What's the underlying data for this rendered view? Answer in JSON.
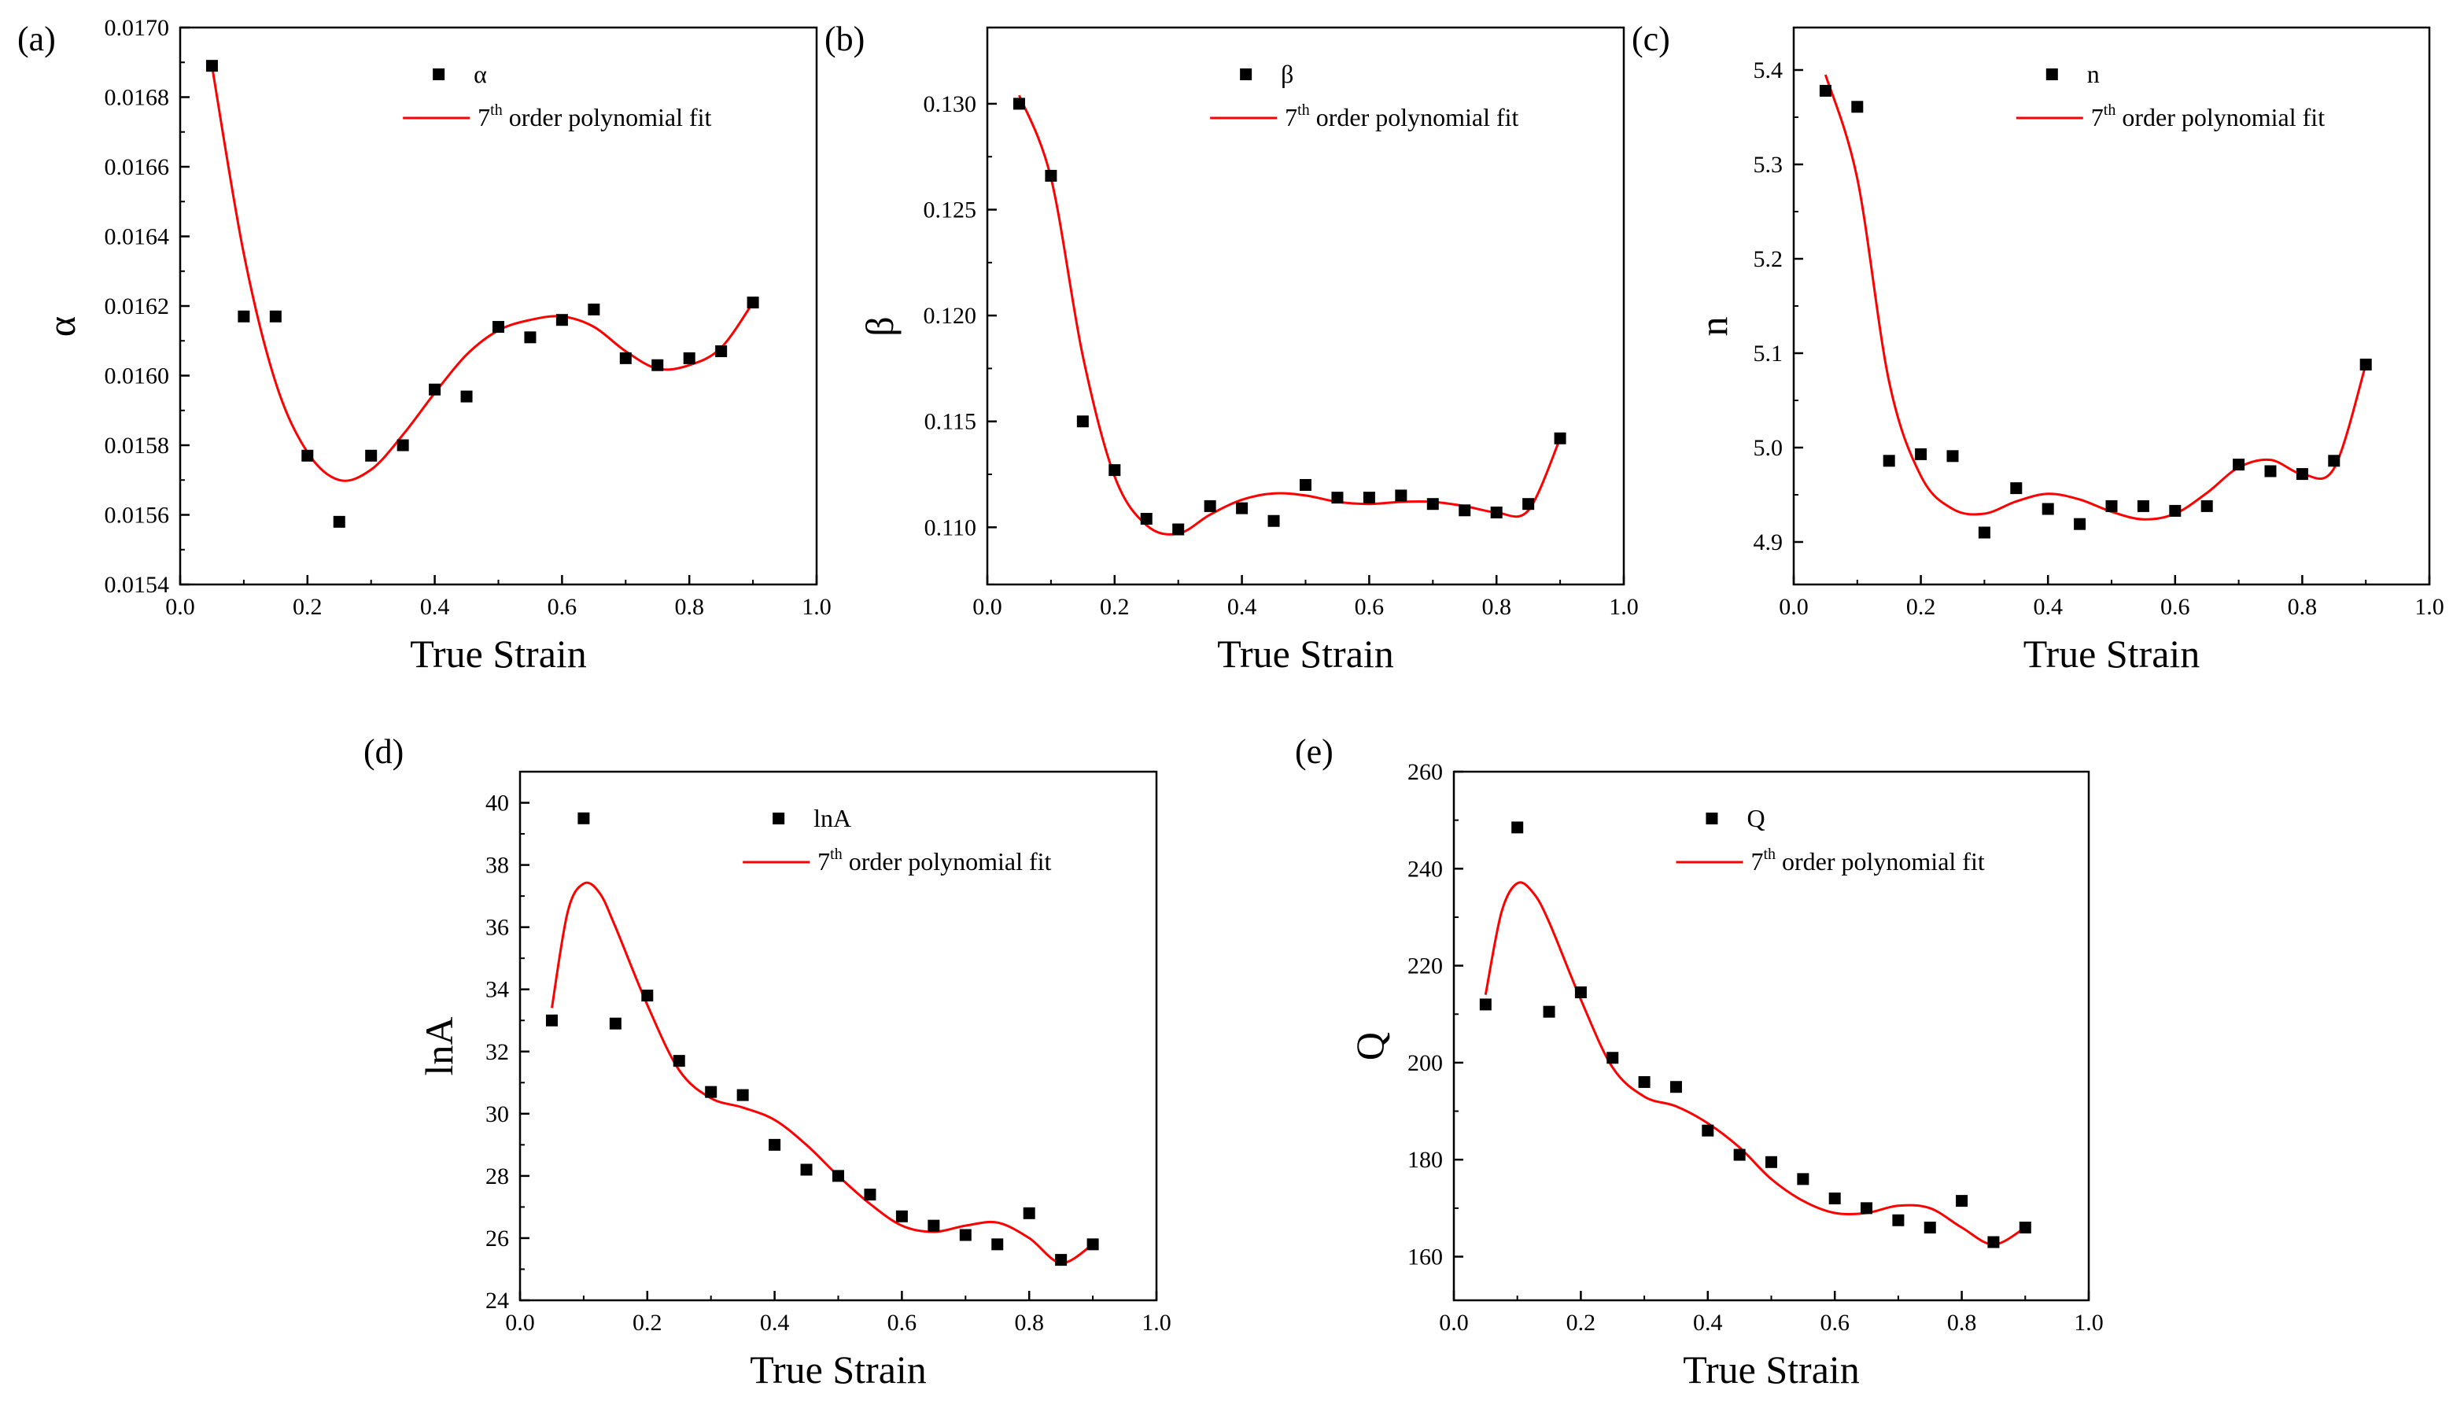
{
  "chart_data": [
    {
      "type": "scatter",
      "panel_label": "(a)",
      "xlabel": "True Strain",
      "ylabel": "α",
      "xlim": [
        0.0,
        1.0
      ],
      "ylim": [
        0.0154,
        0.017
      ],
      "xticks": [
        0.0,
        0.2,
        0.4,
        0.6,
        0.8,
        1.0
      ],
      "xtick_labels": [
        "0.0",
        "0.2",
        "0.4",
        "0.6",
        "0.8",
        "1.0"
      ],
      "yticks": [
        0.0154,
        0.0156,
        0.0158,
        0.016,
        0.0162,
        0.0164,
        0.0166,
        0.0168,
        0.017
      ],
      "ytick_labels": [
        "0.0154",
        "0.0156",
        "0.0158",
        "0.0160",
        "0.0162",
        "0.0164",
        "0.0166",
        "0.0168",
        "0.0170"
      ],
      "legend": {
        "scatter": "α",
        "fit_prefix": "7",
        "fit_sup": "th",
        "fit_suffix": " order polynomial fit"
      },
      "series": [
        {
          "name": "α",
          "kind": "scatter",
          "color": "#000000",
          "x": [
            0.05,
            0.1,
            0.15,
            0.2,
            0.25,
            0.3,
            0.35,
            0.4,
            0.45,
            0.5,
            0.55,
            0.6,
            0.65,
            0.7,
            0.75,
            0.8,
            0.85,
            0.9
          ],
          "y": [
            0.01689,
            0.01617,
            0.01617,
            0.01577,
            0.01558,
            0.01577,
            0.0158,
            0.01596,
            0.01594,
            0.01614,
            0.01611,
            0.01616,
            0.01619,
            0.01605,
            0.01603,
            0.01605,
            0.01607,
            0.01621
          ]
        },
        {
          "name": "7th order polynomial fit",
          "kind": "line",
          "color": "#ff0000",
          "x": [
            0.05,
            0.1,
            0.15,
            0.2,
            0.25,
            0.3,
            0.35,
            0.4,
            0.45,
            0.5,
            0.55,
            0.6,
            0.65,
            0.7,
            0.75,
            0.8,
            0.85,
            0.9
          ],
          "y": [
            0.01689,
            0.01635,
            0.01598,
            0.01578,
            0.0157,
            0.01573,
            0.01583,
            0.01595,
            0.01606,
            0.01613,
            0.01616,
            0.01617,
            0.01614,
            0.01607,
            0.01602,
            0.01603,
            0.01608,
            0.01621
          ]
        }
      ]
    },
    {
      "type": "scatter",
      "panel_label": "(b)",
      "xlabel": "True Strain",
      "ylabel": "β",
      "xlim": [
        0.0,
        1.0
      ],
      "ylim": [
        0.1073,
        0.1336
      ],
      "xticks": [
        0.0,
        0.2,
        0.4,
        0.6,
        0.8,
        1.0
      ],
      "xtick_labels": [
        "0.0",
        "0.2",
        "0.4",
        "0.6",
        "0.8",
        "1.0"
      ],
      "yticks": [
        0.11,
        0.115,
        0.12,
        0.125,
        0.13
      ],
      "ytick_labels": [
        "0.110",
        "0.115",
        "0.120",
        "0.125",
        "0.130"
      ],
      "legend": {
        "scatter": "β",
        "fit_prefix": "7",
        "fit_sup": "th",
        "fit_suffix": " order polynomial fit"
      },
      "series": [
        {
          "name": "β",
          "kind": "scatter",
          "color": "#000000",
          "x": [
            0.05,
            0.1,
            0.15,
            0.2,
            0.25,
            0.3,
            0.35,
            0.4,
            0.45,
            0.5,
            0.55,
            0.6,
            0.65,
            0.7,
            0.75,
            0.8,
            0.85,
            0.9
          ],
          "y": [
            0.13,
            0.1266,
            0.115,
            0.1127,
            0.1104,
            0.1099,
            0.111,
            0.1109,
            0.1103,
            0.112,
            0.1114,
            0.1114,
            0.1115,
            0.1111,
            0.1108,
            0.1107,
            0.1111,
            0.1142
          ]
        },
        {
          "name": "7th order polynomial fit",
          "kind": "line",
          "color": "#ff0000",
          "x": [
            0.05,
            0.1,
            0.15,
            0.2,
            0.25,
            0.3,
            0.35,
            0.4,
            0.45,
            0.5,
            0.55,
            0.6,
            0.65,
            0.7,
            0.75,
            0.8,
            0.85,
            0.9
          ],
          "y": [
            0.1304,
            0.1265,
            0.1181,
            0.1124,
            0.1101,
            0.1097,
            0.1106,
            0.1113,
            0.1116,
            0.1115,
            0.1112,
            0.1111,
            0.1112,
            0.1112,
            0.111,
            0.1107,
            0.1108,
            0.1142
          ]
        }
      ]
    },
    {
      "type": "scatter",
      "panel_label": "(c)",
      "xlabel": "True Strain",
      "ylabel": "n",
      "xlim": [
        0.0,
        1.0
      ],
      "ylim": [
        4.855,
        5.445
      ],
      "xticks": [
        0.0,
        0.2,
        0.4,
        0.6,
        0.8,
        1.0
      ],
      "xtick_labels": [
        "0.0",
        "0.2",
        "0.4",
        "0.6",
        "0.8",
        "1.0"
      ],
      "yticks": [
        4.9,
        5.0,
        5.1,
        5.2,
        5.3,
        5.4
      ],
      "ytick_labels": [
        "4.9",
        "5.0",
        "5.1",
        "5.2",
        "5.3",
        "5.4"
      ],
      "legend": {
        "scatter": "n",
        "fit_prefix": "7",
        "fit_sup": "th",
        "fit_suffix": " order polynomial fit"
      },
      "series": [
        {
          "name": "n",
          "kind": "scatter",
          "color": "#000000",
          "x": [
            0.05,
            0.1,
            0.15,
            0.2,
            0.25,
            0.3,
            0.35,
            0.4,
            0.45,
            0.5,
            0.55,
            0.6,
            0.65,
            0.7,
            0.75,
            0.8,
            0.85,
            0.9
          ],
          "y": [
            5.378,
            5.361,
            4.986,
            4.993,
            4.991,
            4.91,
            4.957,
            4.935,
            4.919,
            4.938,
            4.938,
            4.933,
            4.938,
            4.982,
            4.975,
            4.972,
            4.986,
            5.088
          ]
        },
        {
          "name": "7th order polynomial fit",
          "kind": "line",
          "color": "#ff0000",
          "x": [
            0.05,
            0.1,
            0.15,
            0.2,
            0.25,
            0.3,
            0.35,
            0.4,
            0.45,
            0.5,
            0.55,
            0.6,
            0.65,
            0.7,
            0.75,
            0.8,
            0.85,
            0.9
          ],
          "y": [
            5.395,
            5.285,
            5.07,
            4.97,
            4.935,
            4.93,
            4.943,
            4.951,
            4.945,
            4.932,
            4.924,
            4.93,
            4.952,
            4.979,
            4.987,
            4.972,
            4.978,
            5.088
          ]
        }
      ]
    },
    {
      "type": "scatter",
      "panel_label": "(d)",
      "xlabel": "True Strain",
      "ylabel": "lnA",
      "xlim": [
        0.0,
        1.0
      ],
      "ylim": [
        24,
        41
      ],
      "xticks": [
        0.0,
        0.2,
        0.4,
        0.6,
        0.8,
        1.0
      ],
      "xtick_labels": [
        "0.0",
        "0.2",
        "0.4",
        "0.6",
        "0.8",
        "1.0"
      ],
      "yticks": [
        24,
        26,
        28,
        30,
        32,
        34,
        36,
        38,
        40
      ],
      "ytick_labels": [
        "24",
        "26",
        "28",
        "30",
        "32",
        "34",
        "36",
        "38",
        "40"
      ],
      "legend": {
        "scatter": "lnA",
        "fit_prefix": "7",
        "fit_sup": "th",
        "fit_suffix": " order polynomial fit"
      },
      "series": [
        {
          "name": "lnA",
          "kind": "scatter",
          "color": "#000000",
          "x": [
            0.05,
            0.1,
            0.15,
            0.2,
            0.25,
            0.3,
            0.35,
            0.4,
            0.45,
            0.5,
            0.55,
            0.6,
            0.65,
            0.7,
            0.75,
            0.8,
            0.85,
            0.9
          ],
          "y": [
            33.0,
            39.5,
            32.9,
            33.8,
            31.7,
            30.7,
            30.6,
            29.0,
            28.2,
            28.0,
            27.4,
            26.7,
            26.4,
            26.1,
            25.8,
            26.8,
            25.3,
            25.8
          ]
        },
        {
          "name": "7th order polynomial fit",
          "kind": "line",
          "color": "#ff0000",
          "x": [
            0.05,
            0.075,
            0.1,
            0.125,
            0.15,
            0.2,
            0.25,
            0.3,
            0.35,
            0.4,
            0.45,
            0.5,
            0.55,
            0.6,
            0.65,
            0.7,
            0.75,
            0.8,
            0.85,
            0.9
          ],
          "y": [
            33.4,
            36.5,
            37.4,
            37.1,
            36.0,
            33.5,
            31.4,
            30.5,
            30.2,
            29.8,
            29.0,
            28.0,
            27.1,
            26.4,
            26.2,
            26.4,
            26.5,
            26.0,
            25.2,
            25.8
          ]
        }
      ]
    },
    {
      "type": "scatter",
      "panel_label": "(e)",
      "xlabel": "True Strain",
      "ylabel": "Q",
      "xlim": [
        0.0,
        1.0
      ],
      "ylim": [
        151,
        260
      ],
      "xticks": [
        0.0,
        0.2,
        0.4,
        0.6,
        0.8,
        1.0
      ],
      "xtick_labels": [
        "0.0",
        "0.2",
        "0.4",
        "0.6",
        "0.8",
        "1.0"
      ],
      "yticks": [
        160,
        180,
        200,
        220,
        240,
        260
      ],
      "ytick_labels": [
        "160",
        "180",
        "200",
        "220",
        "240",
        "260"
      ],
      "legend": {
        "scatter": "Q",
        "fit_prefix": "7",
        "fit_sup": "th",
        "fit_suffix": " order polynomial fit"
      },
      "series": [
        {
          "name": "Q",
          "kind": "scatter",
          "color": "#000000",
          "x": [
            0.05,
            0.1,
            0.15,
            0.2,
            0.25,
            0.3,
            0.35,
            0.4,
            0.45,
            0.5,
            0.55,
            0.6,
            0.65,
            0.7,
            0.75,
            0.8,
            0.85,
            0.9
          ],
          "y": [
            212.0,
            248.5,
            210.5,
            214.5,
            201.0,
            196.0,
            195.0,
            186.0,
            181.0,
            179.5,
            176.0,
            172.0,
            170.0,
            167.5,
            166.0,
            171.5,
            163.0,
            166.0
          ]
        },
        {
          "name": "7th order polynomial fit",
          "kind": "line",
          "color": "#ff0000",
          "x": [
            0.05,
            0.075,
            0.1,
            0.125,
            0.15,
            0.2,
            0.25,
            0.3,
            0.35,
            0.4,
            0.45,
            0.5,
            0.55,
            0.6,
            0.65,
            0.7,
            0.75,
            0.8,
            0.85,
            0.9
          ],
          "y": [
            214.0,
            231.0,
            237.0,
            235.0,
            229.0,
            213.0,
            199.0,
            193.0,
            191.0,
            187.5,
            182.5,
            176.0,
            171.5,
            169.0,
            169.0,
            170.5,
            170.0,
            166.0,
            162.5,
            166.0
          ]
        }
      ]
    }
  ]
}
